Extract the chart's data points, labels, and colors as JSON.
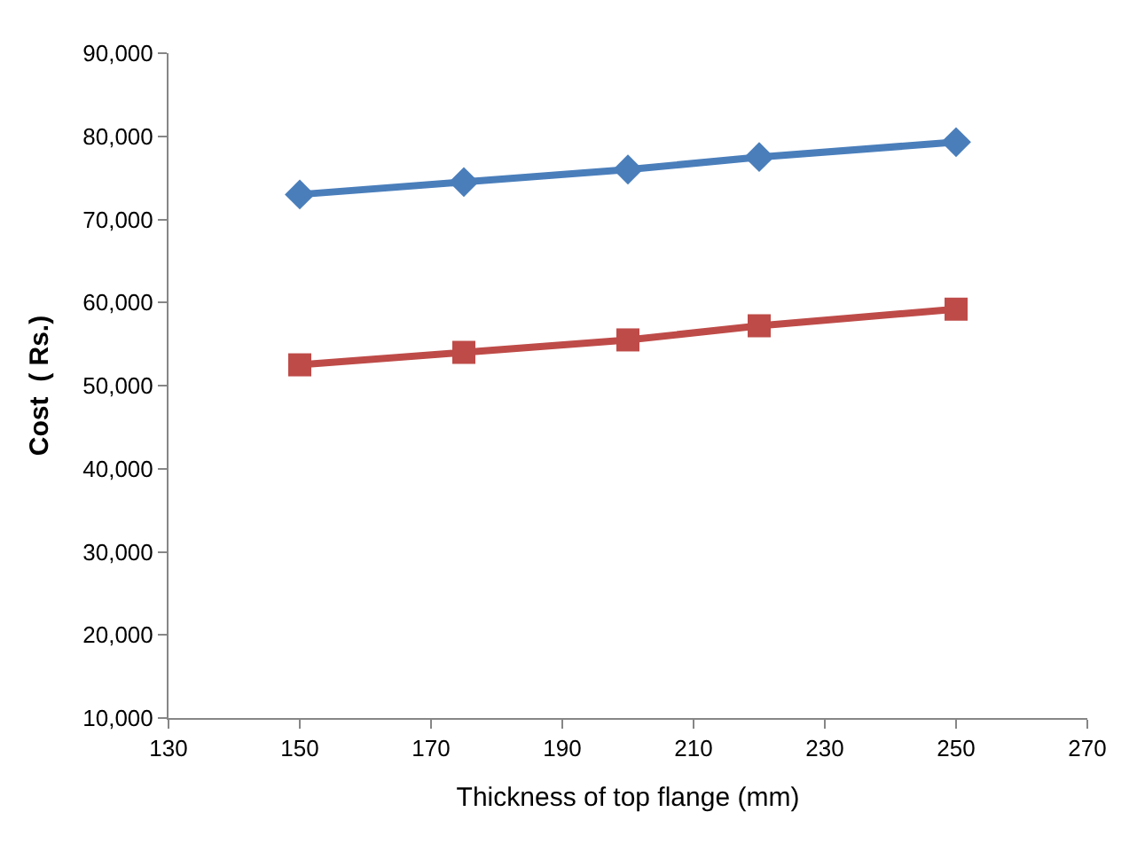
{
  "chart_data": {
    "type": "line",
    "xlabel": "Thickness of top flange (mm)",
    "ylabel": "Cost  ( Rs.)",
    "x": [
      150,
      175,
      200,
      220,
      250
    ],
    "series": [
      {
        "color": "#4a7ebb",
        "marker": "diamond",
        "values": [
          73000,
          74500,
          76000,
          77500,
          79300
        ]
      },
      {
        "color": "#be4b48",
        "marker": "square",
        "values": [
          52500,
          54000,
          55500,
          57200,
          59200
        ]
      }
    ],
    "xlim": [
      130,
      270
    ],
    "xticks": [
      130,
      150,
      170,
      190,
      210,
      230,
      250,
      270
    ],
    "ylim": [
      10000,
      90000
    ],
    "yticks": [
      {
        "value": 10000,
        "label": "10,000"
      },
      {
        "value": 20000,
        "label": "20,000"
      },
      {
        "value": 30000,
        "label": "30,000"
      },
      {
        "value": 40000,
        "label": "40,000"
      },
      {
        "value": 50000,
        "label": "50,000"
      },
      {
        "value": 60000,
        "label": "60,000"
      },
      {
        "value": 70000,
        "label": "70,000"
      },
      {
        "value": 80000,
        "label": "80,000"
      },
      {
        "value": 90000,
        "label": "90,000"
      }
    ],
    "grid": false
  }
}
